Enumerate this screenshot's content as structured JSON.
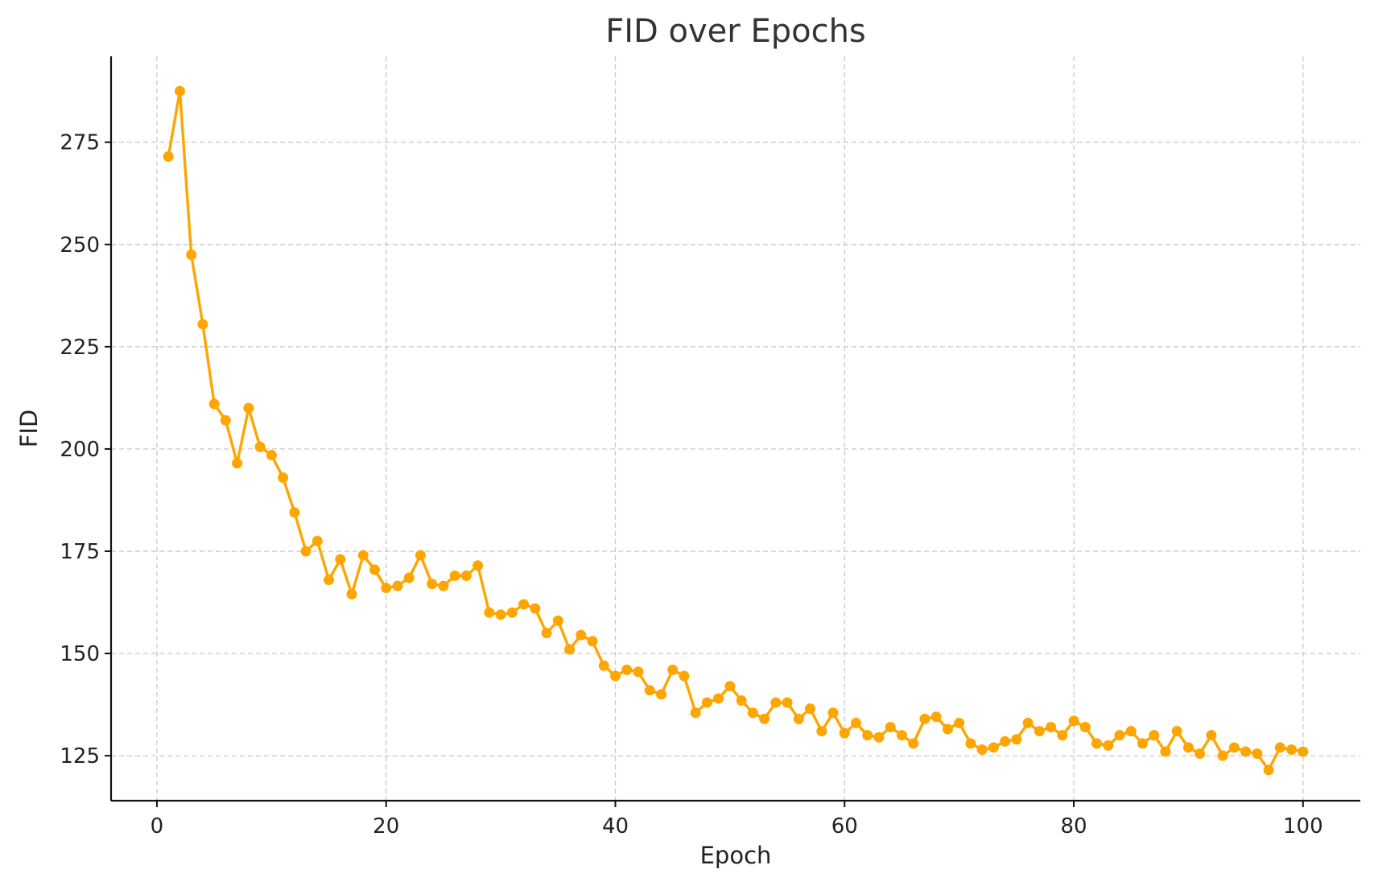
{
  "chart_data": {
    "type": "line",
    "title": "FID over Epochs",
    "xlabel": "Epoch",
    "ylabel": "FID",
    "xlim": [
      -4,
      105
    ],
    "ylim": [
      114,
      296
    ],
    "xticks": [
      0,
      20,
      40,
      60,
      80,
      100
    ],
    "yticks": [
      125,
      150,
      175,
      200,
      225,
      250,
      275
    ],
    "grid": true,
    "color": "#FFA500",
    "marker": "circle",
    "series": [
      {
        "x": [
          1,
          2,
          3,
          4,
          5,
          6,
          7,
          8,
          9,
          10,
          11,
          12,
          13,
          14,
          15,
          16,
          17,
          18,
          19,
          20,
          21,
          22,
          23,
          24,
          25,
          26,
          27,
          28,
          29,
          30,
          31,
          32,
          33,
          34,
          35,
          36,
          37,
          38,
          39,
          40,
          41,
          42,
          43,
          44,
          45,
          46,
          47,
          48,
          49,
          50,
          51,
          52,
          53,
          54,
          55,
          56,
          57,
          58,
          59,
          60,
          61,
          62,
          63,
          64,
          65,
          66,
          67,
          68,
          69,
          70,
          71,
          72,
          73,
          74,
          75,
          76,
          77,
          78,
          79,
          80,
          81,
          82,
          83,
          84,
          85,
          86,
          87,
          88,
          89,
          90,
          91,
          92,
          93,
          94,
          95,
          96,
          97,
          98,
          99,
          100
        ],
        "values": [
          271.5,
          287.5,
          247.5,
          230.5,
          211.0,
          207.0,
          196.5,
          210.0,
          200.5,
          198.5,
          193.0,
          184.5,
          175.0,
          177.5,
          168.0,
          173.0,
          164.5,
          174.0,
          170.5,
          166.0,
          166.5,
          168.5,
          174.0,
          167.0,
          166.5,
          169.0,
          169.0,
          171.5,
          160.0,
          159.5,
          160.0,
          162.0,
          161.0,
          155.0,
          158.0,
          151.0,
          154.5,
          153.0,
          147.0,
          144.5,
          146.0,
          145.5,
          141.0,
          140.0,
          146.0,
          144.5,
          135.5,
          138.0,
          139.0,
          142.0,
          138.5,
          135.5,
          134.0,
          138.0,
          138.0,
          134.0,
          136.5,
          131.0,
          135.5,
          130.5,
          133.0,
          130.0,
          129.5,
          132.0,
          130.0,
          128.0,
          134.0,
          134.5,
          131.5,
          133.0,
          128.0,
          126.5,
          127.0,
          128.5,
          129.0,
          133.0,
          131.0,
          132.0,
          130.0,
          133.5,
          132.0,
          128.0,
          127.5,
          130.0,
          131.0,
          128.0,
          130.0,
          126.0,
          131.0,
          127.0,
          125.5,
          130.0,
          125.0,
          127.0,
          126.0,
          125.5,
          121.5,
          127.0,
          126.5,
          126.0
        ]
      }
    ]
  }
}
